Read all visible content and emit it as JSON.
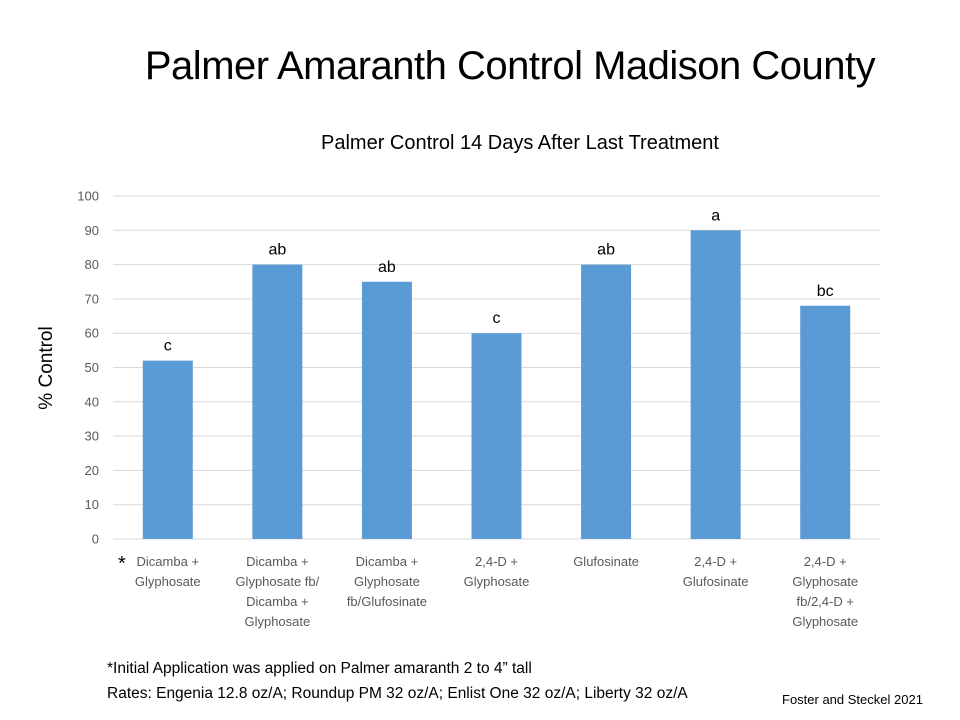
{
  "slide": {
    "title": "Palmer Amaranth Control Madison County",
    "asterisk": "*",
    "footnotes": [
      "*Initial Application was applied on Palmer amaranth 2 to 4” tall",
      "Rates:  Engenia 12.8 oz/A; Roundup PM 32 oz/A; Enlist One 32 oz/A; Liberty 32 oz/A"
    ],
    "credit": "Foster and Steckel 2021"
  },
  "chart_data": {
    "type": "bar",
    "title": "Palmer Control 14 Days After Last Treatment",
    "xlabel": "",
    "ylabel": "% Control",
    "ylim": [
      0,
      100
    ],
    "yticks": [
      0,
      10,
      20,
      30,
      40,
      50,
      60,
      70,
      80,
      90,
      100
    ],
    "grid": true,
    "legend": "none",
    "bar_color": "#5B9BD5",
    "categories": [
      [
        "Dicamba +",
        "Glyphosate"
      ],
      [
        "Dicamba +",
        "Glyphosate fb/",
        "Dicamba +",
        "Glyphosate"
      ],
      [
        "Dicamba +",
        "Glyphosate",
        "fb/Glufosinate"
      ],
      [
        "2,4-D +",
        "Glyphosate"
      ],
      [
        "Glufosinate"
      ],
      [
        "2,4-D +",
        "Glufosinate"
      ],
      [
        "2,4-D +",
        "Glyphosate",
        "fb/2,4-D +",
        "Glyphosate"
      ]
    ],
    "values": [
      52,
      80,
      75,
      60,
      80,
      90,
      68
    ],
    "data_labels": [
      "c",
      "ab",
      "ab",
      "c",
      "ab",
      "a",
      "bc"
    ]
  }
}
